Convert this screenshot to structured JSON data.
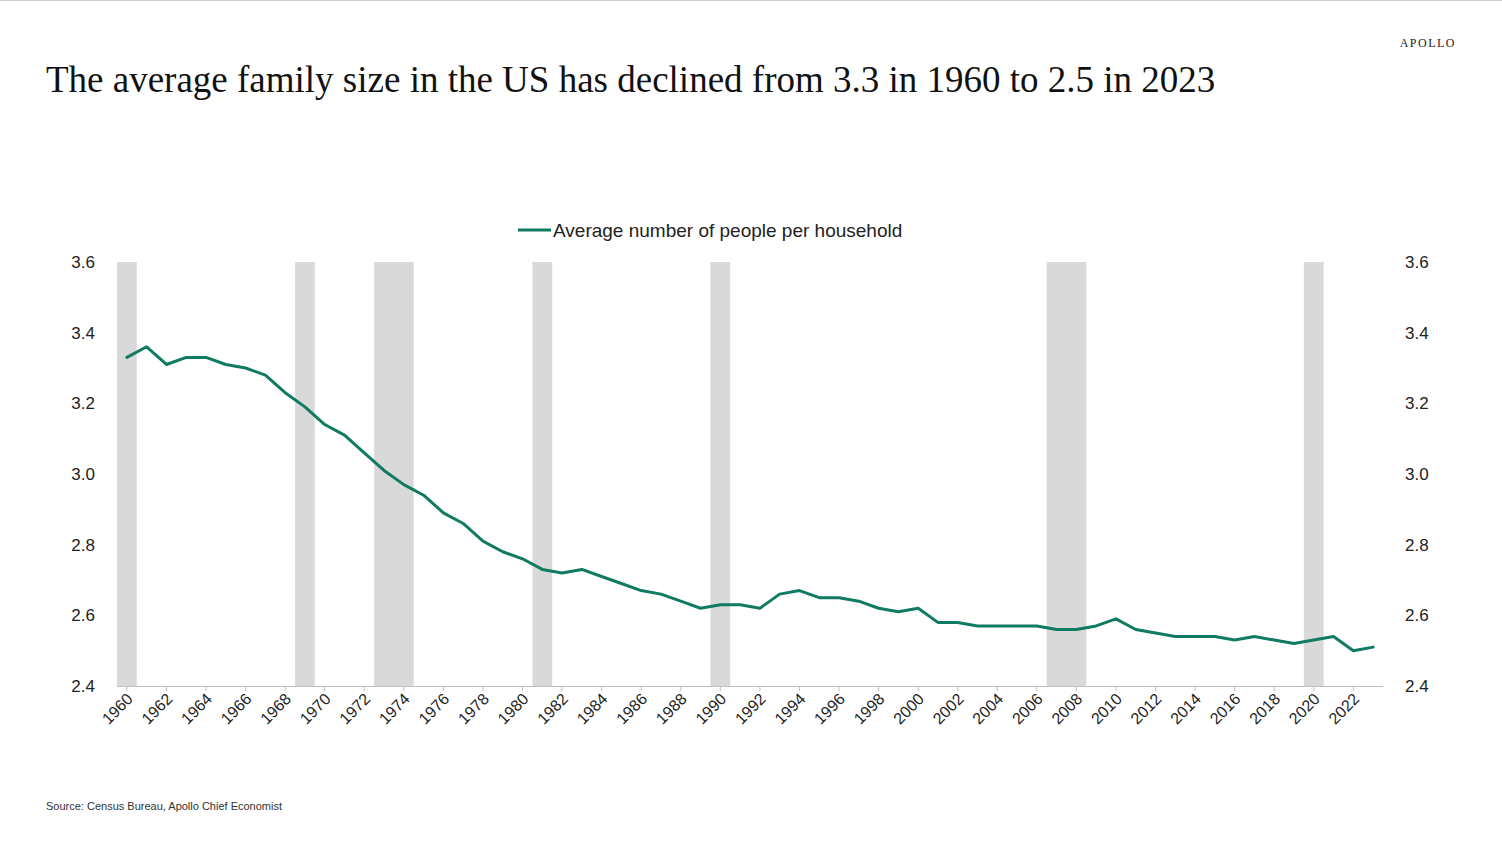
{
  "chart_data": {
    "type": "line",
    "title": "The average family size in the US has declined from 3.3 in 1960 to 2.5 in 2023",
    "brand": "APOLLO",
    "source": "Source: Census Bureau, Apollo Chief Economist",
    "x": [
      1960,
      1961,
      1962,
      1963,
      1964,
      1965,
      1966,
      1967,
      1968,
      1969,
      1970,
      1971,
      1972,
      1973,
      1974,
      1975,
      1976,
      1977,
      1978,
      1979,
      1980,
      1981,
      1982,
      1983,
      1984,
      1985,
      1986,
      1987,
      1988,
      1989,
      1990,
      1991,
      1992,
      1993,
      1994,
      1995,
      1996,
      1997,
      1998,
      1999,
      2000,
      2001,
      2002,
      2003,
      2004,
      2005,
      2006,
      2007,
      2008,
      2009,
      2010,
      2011,
      2012,
      2013,
      2014,
      2015,
      2016,
      2017,
      2018,
      2019,
      2020,
      2021,
      2022,
      2023
    ],
    "series": [
      {
        "name": "Average number of people per household",
        "color": "#117a62",
        "values": [
          3.33,
          3.36,
          3.31,
          3.33,
          3.33,
          3.31,
          3.3,
          3.28,
          3.23,
          3.19,
          3.14,
          3.11,
          3.06,
          3.01,
          2.97,
          2.94,
          2.89,
          2.86,
          2.81,
          2.78,
          2.76,
          2.73,
          2.72,
          2.73,
          2.71,
          2.69,
          2.67,
          2.66,
          2.64,
          2.62,
          2.63,
          2.63,
          2.62,
          2.66,
          2.67,
          2.65,
          2.65,
          2.64,
          2.62,
          2.61,
          2.62,
          2.58,
          2.58,
          2.57,
          2.57,
          2.57,
          2.57,
          2.56,
          2.56,
          2.57,
          2.59,
          2.56,
          2.55,
          2.54,
          2.54,
          2.54,
          2.53,
          2.54,
          2.53,
          2.52,
          2.53,
          2.54,
          2.5,
          2.51
        ]
      }
    ],
    "shaded_periods": [
      [
        1959.5,
        1960.5
      ],
      [
        1968.5,
        1969.5
      ],
      [
        1972.5,
        1974.5
      ],
      [
        1980.5,
        1981.5
      ],
      [
        1989.5,
        1990.5
      ],
      [
        2006.5,
        2008.5
      ],
      [
        2019.5,
        2020.5
      ]
    ],
    "xlim": [
      1959.5,
      2023.5
    ],
    "xticks": [
      1960,
      1962,
      1964,
      1966,
      1968,
      1970,
      1972,
      1974,
      1976,
      1978,
      1980,
      1982,
      1984,
      1986,
      1988,
      1990,
      1992,
      1994,
      1996,
      1998,
      2000,
      2002,
      2004,
      2006,
      2008,
      2010,
      2012,
      2014,
      2016,
      2018,
      2020,
      2022
    ],
    "ylim": [
      2.4,
      3.6
    ],
    "yticks": [
      {
        "value": 2.4,
        "label": "2.4"
      },
      {
        "value": 2.6,
        "label": "2.6"
      },
      {
        "value": 2.8,
        "label": "2.8"
      },
      {
        "value": 3.0,
        "label": "3.0"
      },
      {
        "value": 3.2,
        "label": "3.2"
      },
      {
        "value": 3.4,
        "label": "3.4"
      },
      {
        "value": 3.6,
        "label": "3.6"
      }
    ],
    "y2lim": [
      2.4,
      3.6
    ],
    "y2ticks": [
      {
        "value": 2.4,
        "label": "2.4"
      },
      {
        "value": 2.6,
        "label": "2.6"
      },
      {
        "value": 2.8,
        "label": "2.8"
      },
      {
        "value": 3.0,
        "label": "3.0"
      },
      {
        "value": 3.2,
        "label": "3.2"
      },
      {
        "value": 3.4,
        "label": "3.4"
      },
      {
        "value": 3.6,
        "label": "3.6"
      }
    ],
    "legend": "top",
    "grid": false
  }
}
